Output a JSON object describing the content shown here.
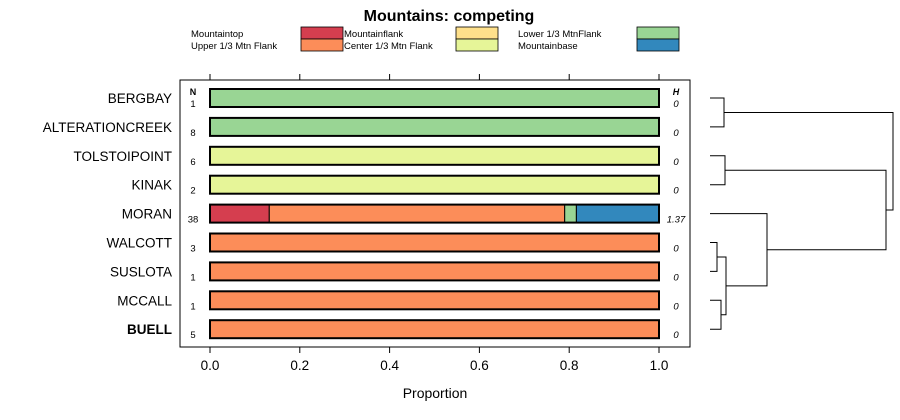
{
  "chart_data": {
    "type": "bar",
    "subtype": "stacked-horizontal-proportion",
    "title": "Mountains: competing",
    "xlabel": "Proportion",
    "ylabel": "",
    "xlim": [
      0,
      1
    ],
    "xticks": [
      "0.0",
      "0.2",
      "0.4",
      "0.6",
      "0.8",
      "1.0"
    ],
    "xtick_values": [
      0,
      0.2,
      0.4,
      0.6,
      0.8,
      1.0
    ],
    "n_header": "N",
    "h_header": "H",
    "legend_placement": "top",
    "legend": [
      {
        "name": "Mountaintop",
        "color": "#d53e4f"
      },
      {
        "name": "Upper 1/3 Mtn Flank",
        "color": "#fc8d59"
      },
      {
        "name": "Mountainflank",
        "color": "#fee08b"
      },
      {
        "name": "Center 1/3 Mtn Flank",
        "color": "#e6f598"
      },
      {
        "name": "Lower 1/3 MtnFlank",
        "color": "#99d594"
      },
      {
        "name": "Mountainbase",
        "color": "#3288bd"
      }
    ],
    "categories": [
      "BERGBAY",
      "ALTERATIONCREEK",
      "TOLSTOIPOINT",
      "KINAK",
      "MORAN",
      "WALCOTT",
      "SUSLOTA",
      "MCCALL",
      "BUELL"
    ],
    "bold_category": "BUELL",
    "n": [
      "1",
      "8",
      "6",
      "2",
      "38",
      "3",
      "1",
      "1",
      "5"
    ],
    "h": [
      "0",
      "0",
      "0",
      "0",
      "1.37",
      "0",
      "0",
      "0",
      "0"
    ],
    "series": [
      {
        "name": "Mountaintop",
        "values": [
          0,
          0,
          0,
          0,
          0.132,
          0,
          0,
          0,
          0
        ]
      },
      {
        "name": "Upper 1/3 Mtn Flank",
        "values": [
          0,
          0,
          0,
          0,
          0.658,
          1,
          1,
          1,
          1
        ]
      },
      {
        "name": "Mountainflank",
        "values": [
          0,
          0,
          0,
          0,
          0,
          0,
          0,
          0,
          0
        ]
      },
      {
        "name": "Center 1/3 Mtn Flank",
        "values": [
          0,
          0,
          1,
          1,
          0,
          0,
          0,
          0,
          0
        ]
      },
      {
        "name": "Lower 1/3 MtnFlank",
        "values": [
          1,
          1,
          0,
          0,
          0.026,
          0,
          0,
          0,
          0
        ]
      },
      {
        "name": "Mountainbase",
        "values": [
          0,
          0,
          0,
          0,
          0.184,
          0,
          0,
          0,
          0
        ]
      }
    ],
    "dendrogram": "(((BERGBAY,ALTERATIONCREEK),(TOLSTOIPOINT,KINAK)),(MORAN,((WALCOTT,SUSLOTA),(MCCALL,BUELL))))"
  }
}
